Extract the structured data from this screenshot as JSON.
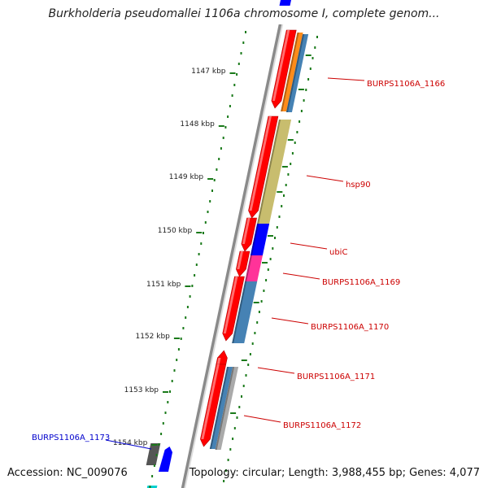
{
  "title": "Burkholderia pseudomallei 1106a chromosome I, complete genom...",
  "footer": {
    "accession": "Accession: NC_009076",
    "topology": "Topology: circular; Length: 3,988,455 bp; Genes: 4,077"
  },
  "colors": {
    "backbone": "#8a8a8a",
    "tick": "#1a7a1a",
    "gene_arrow": "#ff0000",
    "label_red": "#cc0000",
    "label_blue": "#0000cc",
    "orange": "#ff8c1a",
    "steel_blue": "#4682b4",
    "khaki": "#c8bd6e",
    "blue": "#0000ff",
    "magenta": "#ff3399",
    "gray": "#aaaaaa",
    "dark_gray": "#555555",
    "cyan": "#00d0d0"
  },
  "tick_labels": [
    "1147 kbp",
    "1148 kbp",
    "1149 kbp",
    "1150 kbp",
    "1151 kbp",
    "1152 kbp",
    "1153 kbp",
    "1154 kbp"
  ],
  "gene_labels": [
    {
      "text": "BURPS1106A_1166",
      "color": "label_red"
    },
    {
      "text": "hsp90",
      "color": "label_red"
    },
    {
      "text": "ubiC",
      "color": "label_red"
    },
    {
      "text": "BURPS1106A_1169",
      "color": "label_red"
    },
    {
      "text": "BURPS1106A_1170",
      "color": "label_red"
    },
    {
      "text": "BURPS1106A_1171",
      "color": "label_red"
    },
    {
      "text": "BURPS1106A_1172",
      "color": "label_red"
    },
    {
      "text": "BURPS1106A_1173",
      "color": "label_blue"
    }
  ]
}
